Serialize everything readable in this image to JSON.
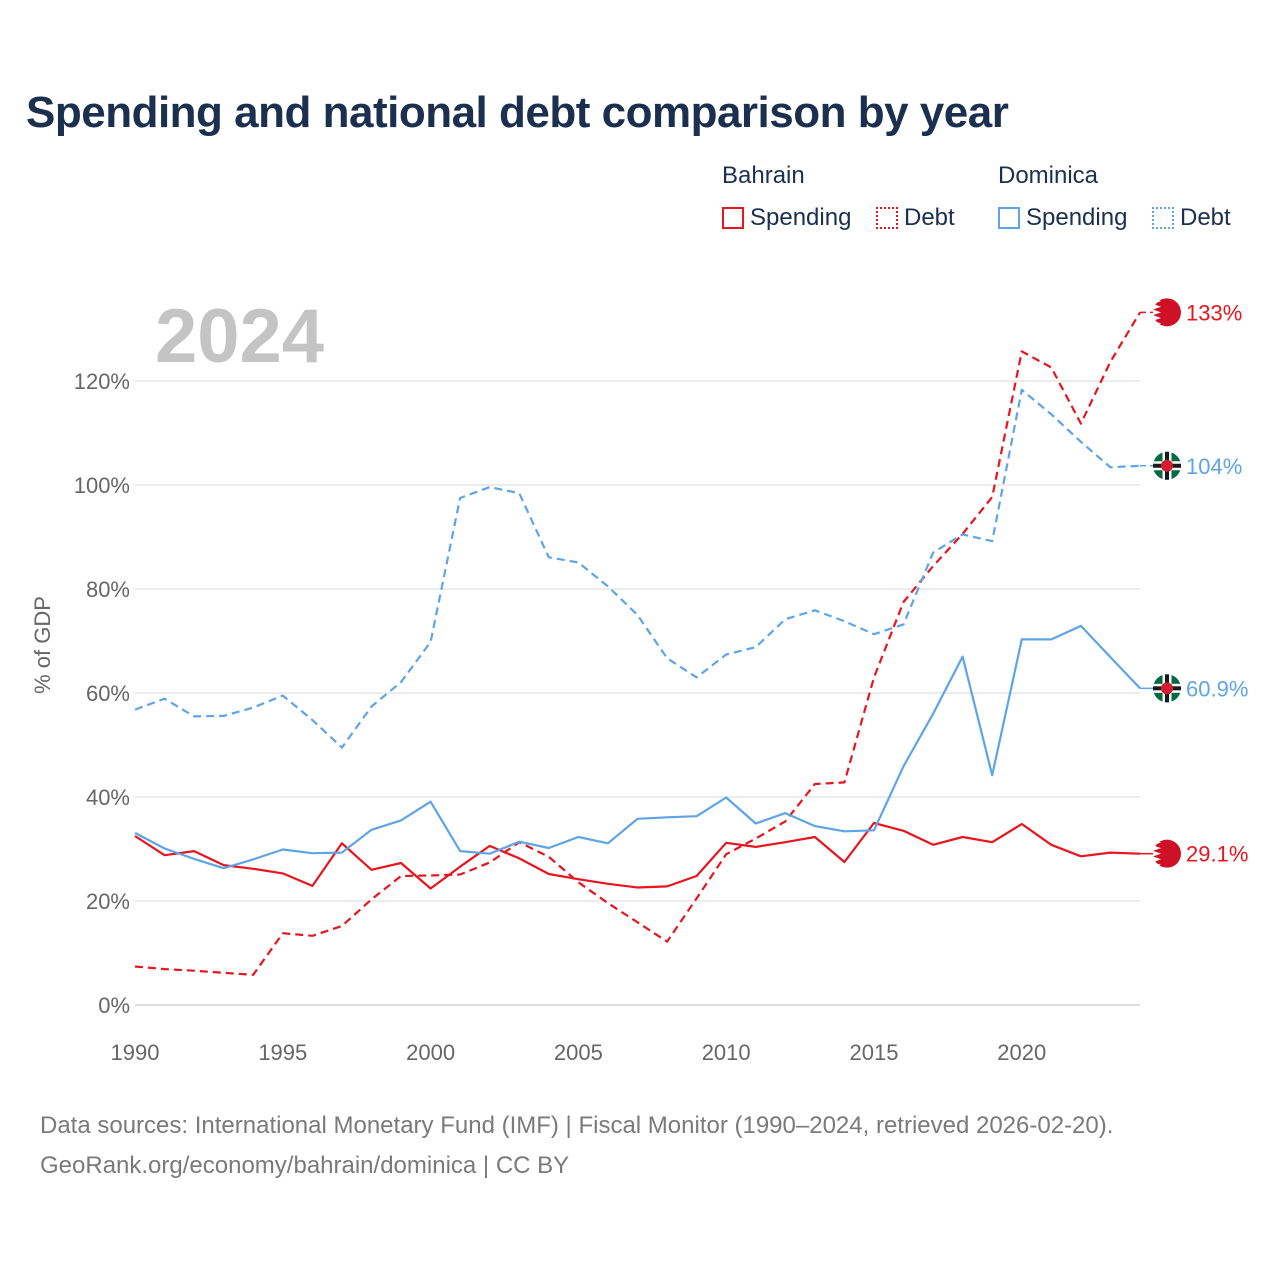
{
  "title": "Spending and national debt comparison by year",
  "legend": {
    "groups": [
      {
        "country": "Bahrain",
        "items": [
          {
            "label": "Spending",
            "style": "solid",
            "color": "#e8141e"
          },
          {
            "label": "Debt",
            "style": "dashed",
            "color": "#e8141e"
          }
        ]
      },
      {
        "country": "Dominica",
        "items": [
          {
            "label": "Spending",
            "style": "solid",
            "color": "#5ea4e6"
          },
          {
            "label": "Debt",
            "style": "dashed",
            "color": "#5ea4e6"
          }
        ]
      }
    ]
  },
  "source": {
    "line1": "Data sources: International Monetary Fund (IMF) | Fiscal Monitor (1990–2024, retrieved 2026-02-20).",
    "line2": "GeoRank.org/economy/bahrain/dominica | CC BY"
  },
  "chart_data": {
    "type": "line",
    "year_label": "2024",
    "ylabel": "% of GDP",
    "xlabel": "",
    "xlim": [
      1990,
      2024
    ],
    "ylim": [
      0,
      120
    ],
    "y_ticks": [
      0,
      20,
      40,
      60,
      80,
      100,
      120
    ],
    "y_tick_labels": [
      "0%",
      "20%",
      "40%",
      "60%",
      "80%",
      "100%",
      "120%"
    ],
    "x_ticks": [
      1990,
      1995,
      2000,
      2005,
      2010,
      2015,
      2020
    ],
    "x_tick_labels": [
      "1990",
      "1995",
      "2000",
      "2005",
      "2010",
      "2015",
      "2020"
    ],
    "grid": true,
    "x": [
      1990,
      1991,
      1992,
      1993,
      1994,
      1995,
      1996,
      1997,
      1998,
      1999,
      2000,
      2001,
      2002,
      2003,
      2004,
      2005,
      2006,
      2007,
      2008,
      2009,
      2010,
      2011,
      2012,
      2013,
      2014,
      2015,
      2016,
      2017,
      2018,
      2019,
      2020,
      2021,
      2022,
      2023,
      2024
    ],
    "series": [
      {
        "name": "Bahrain Spending",
        "country": "Bahrain",
        "metric": "Spending",
        "color": "#e8141e",
        "dashed": false,
        "end_label": "29.1%",
        "marker": "bahrain-flag-icon",
        "values": [
          32.5,
          28.8,
          29.6,
          26.9,
          26.2,
          25.3,
          22.9,
          31.1,
          26.0,
          27.3,
          22.4,
          26.6,
          30.6,
          28.2,
          25.2,
          24.2,
          23.3,
          22.6,
          22.8,
          24.8,
          31.2,
          30.4,
          31.3,
          32.3,
          27.5,
          35.0,
          33.5,
          30.8,
          32.3,
          31.3,
          34.8,
          30.8,
          28.6,
          29.3,
          29.1
        ]
      },
      {
        "name": "Bahrain Debt",
        "country": "Bahrain",
        "metric": "Debt",
        "color": "#e8141e",
        "dashed": true,
        "end_label": "133%",
        "marker": "bahrain-flag-icon",
        "values": [
          7.4,
          6.9,
          6.6,
          6.2,
          5.8,
          13.8,
          13.3,
          15.2,
          20.3,
          24.8,
          24.9,
          25.1,
          27.4,
          31.3,
          28.5,
          23.6,
          19.6,
          15.9,
          12.2,
          20.5,
          29.0,
          32.0,
          35.3,
          42.5,
          42.8,
          63.0,
          77.5,
          84.4,
          90.6,
          97.7,
          125.7,
          122.6,
          111.8,
          123.7,
          133.2
        ]
      },
      {
        "name": "Dominica Spending",
        "country": "Dominica",
        "metric": "Spending",
        "color": "#5ea4e6",
        "dashed": false,
        "end_label": "60.9%",
        "marker": "dominica-flag-icon",
        "values": [
          33.1,
          30.1,
          28.1,
          26.3,
          28.0,
          29.9,
          29.2,
          29.3,
          33.7,
          35.5,
          39.1,
          29.6,
          29.1,
          31.4,
          30.2,
          32.3,
          31.1,
          35.8,
          36.1,
          36.3,
          39.9,
          34.9,
          36.9,
          34.4,
          33.4,
          33.6,
          45.9,
          56.0,
          67.0,
          44.2,
          70.3,
          70.3,
          72.9,
          66.9,
          60.9
        ]
      },
      {
        "name": "Dominica Debt",
        "country": "Dominica",
        "metric": "Debt",
        "color": "#5ea4e6",
        "dashed": true,
        "end_label": "104%",
        "marker": "dominica-flag-icon",
        "values": [
          56.8,
          58.9,
          55.5,
          55.6,
          57.2,
          59.5,
          54.8,
          49.5,
          57.4,
          62.1,
          69.8,
          97.5,
          99.6,
          98.4,
          86.1,
          85.1,
          80.5,
          75.0,
          66.7,
          63.0,
          67.4,
          68.8,
          74.2,
          75.9,
          73.8,
          71.3,
          73.2,
          87.0,
          90.5,
          89.2,
          118.3,
          113.6,
          108.3,
          103.4,
          103.7
        ]
      }
    ]
  }
}
